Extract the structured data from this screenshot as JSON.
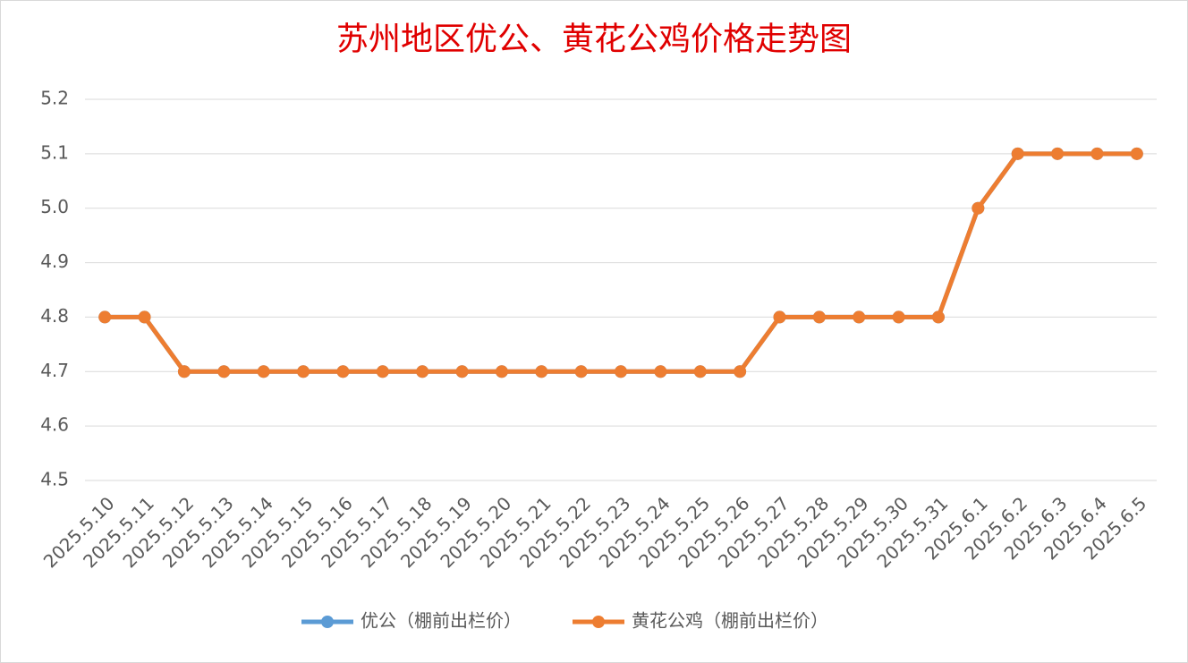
{
  "chart_data": {
    "type": "line",
    "title": "苏州地区优公、黄花公鸡价格走势图",
    "categories": [
      "2025.5.10",
      "2025.5.11",
      "2025.5.12",
      "2025.5.13",
      "2025.5.14",
      "2025.5.15",
      "2025.5.16",
      "2025.5.17",
      "2025.5.18",
      "2025.5.19",
      "2025.5.20",
      "2025.5.21",
      "2025.5.22",
      "2025.5.23",
      "2025.5.24",
      "2025.5.25",
      "2025.5.26",
      "2025.5.27",
      "2025.5.28",
      "2025.5.29",
      "2025.5.30",
      "2025.5.31",
      "2025.6.1",
      "2025.6.2",
      "2025.6.3",
      "2025.6.4",
      "2025.6.5"
    ],
    "series": [
      {
        "name": "优公（棚前出栏价）",
        "color": "#5b9bd5",
        "values": [
          4.8,
          4.8,
          4.7,
          4.7,
          4.7,
          4.7,
          4.7,
          4.7,
          4.7,
          4.7,
          4.7,
          4.7,
          4.7,
          4.7,
          4.7,
          4.7,
          4.7,
          4.8,
          4.8,
          4.8,
          4.8,
          4.8,
          5.0,
          5.1,
          5.1,
          5.1,
          5.1
        ]
      },
      {
        "name": "黄花公鸡（棚前出栏价）",
        "color": "#ed7d31",
        "values": [
          4.8,
          4.8,
          4.7,
          4.7,
          4.7,
          4.7,
          4.7,
          4.7,
          4.7,
          4.7,
          4.7,
          4.7,
          4.7,
          4.7,
          4.7,
          4.7,
          4.7,
          4.8,
          4.8,
          4.8,
          4.8,
          4.8,
          5.0,
          5.1,
          5.1,
          5.1,
          5.1
        ]
      }
    ],
    "ylim": [
      4.5,
      5.2
    ],
    "yticks": [
      4.5,
      4.6,
      4.7,
      4.8,
      4.9,
      {
        "value": 5,
        "label": "5.0"
      },
      5.1,
      5.2
    ],
    "grid": true,
    "legend": "bottom"
  }
}
